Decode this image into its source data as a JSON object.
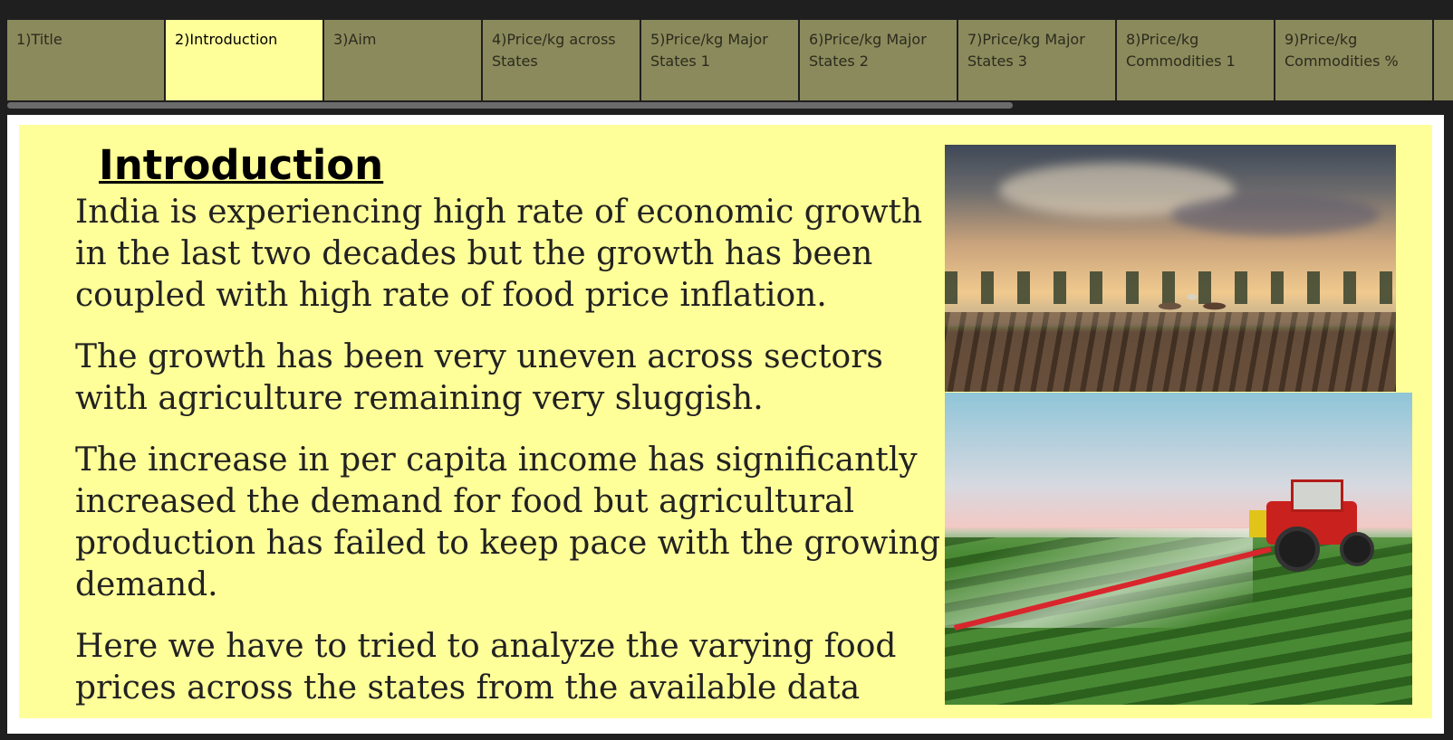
{
  "tabs": [
    {
      "label": "1)Title",
      "active": false
    },
    {
      "label": "2)Introduction",
      "active": true
    },
    {
      "label": "3)Aim",
      "active": false
    },
    {
      "label": "4)Price/kg across\nStates",
      "active": false
    },
    {
      "label": "5)Price/kg Major\nStates 1",
      "active": false
    },
    {
      "label": "6)Price/kg Major\nStates 2",
      "active": false
    },
    {
      "label": "7)Price/kg Major\nStates 3",
      "active": false
    },
    {
      "label": "8)Price/kg\nCommodities 1",
      "active": false
    },
    {
      "label": "9)Price/kg\nCommodities %",
      "active": false
    },
    {
      "label": "",
      "active": false
    }
  ],
  "story": {
    "heading": "Introduction",
    "paragraphs": [
      "India is experiencing high rate of economic growth in the last two decades but the growth has been coupled with high rate of food price inflation.",
      "The growth has been very uneven across sectors with agriculture remaining very sluggish.",
      " The increase in per capita income has significantly increased the demand for food but agricultural production has failed to keep pace with the growing demand.",
      "Here we have to tried to analyze the varying food prices across the states from the available data"
    ]
  },
  "colors": {
    "tab_bg": "#8b8a5c",
    "tab_active_bg": "#ffff99",
    "panel_bg": "#ffff99",
    "page_bg": "#1f1f1f"
  }
}
